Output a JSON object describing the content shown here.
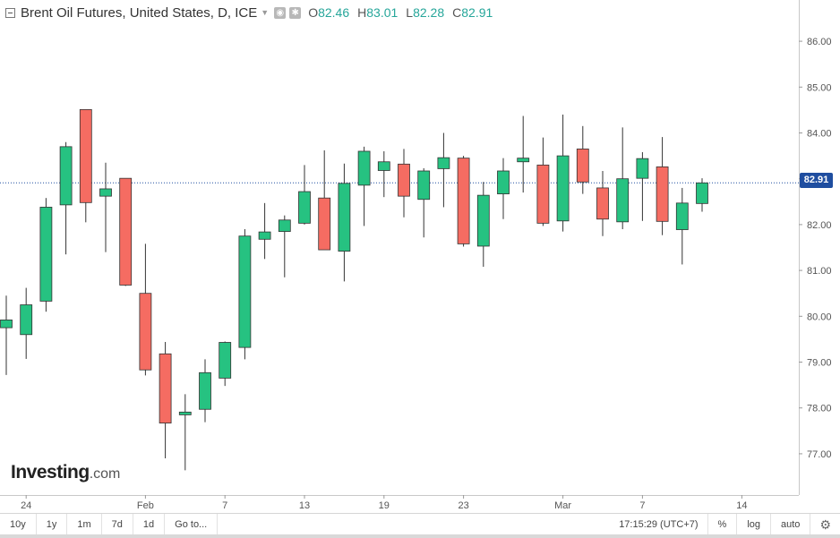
{
  "legend": {
    "title": "Brent Oil Futures, United States, D, ICE",
    "open_label": "O",
    "open": "82.46",
    "high_label": "H",
    "high": "83.01",
    "low_label": "L",
    "low": "82.28",
    "close_label": "C",
    "close": "82.91"
  },
  "logo": {
    "main": "Investing",
    "suffix": ".com"
  },
  "last_price": "82.91",
  "bottom_bar": {
    "timeframes": [
      "10y",
      "1y",
      "1m",
      "7d",
      "1d"
    ],
    "goto_label": "Go to...",
    "clock": "17:15:29 (UTC+7)",
    "percent_label": "%",
    "log_label": "log",
    "auto_label": "auto"
  },
  "colors": {
    "up": "#26c281",
    "down": "#f56c62",
    "price_line": "#1f4ea0"
  },
  "chart_data": {
    "type": "candlestick",
    "title": "Brent Oil Futures, United States, D, ICE",
    "y_ticks": [
      "77.00",
      "78.00",
      "79.00",
      "80.00",
      "81.00",
      "82.00",
      "83.00",
      "84.00",
      "85.00",
      "86.00"
    ],
    "ylim": [
      76.1,
      86.9
    ],
    "x_tick_labels": [
      {
        "label": "24",
        "index": 1
      },
      {
        "label": "Feb",
        "index": 7
      },
      {
        "label": "7",
        "index": 11
      },
      {
        "label": "13",
        "index": 15
      },
      {
        "label": "19",
        "index": 19
      },
      {
        "label": "23",
        "index": 23
      },
      {
        "label": "Mar",
        "index": 28
      },
      {
        "label": "7",
        "index": 32
      },
      {
        "label": "14",
        "index": 37
      }
    ],
    "grid": false,
    "candles": [
      {
        "o": 79.75,
        "h": 80.45,
        "l": 78.72,
        "c": 79.92
      },
      {
        "o": 79.6,
        "h": 80.62,
        "l": 79.07,
        "c": 80.25
      },
      {
        "o": 80.33,
        "h": 82.58,
        "l": 80.1,
        "c": 82.38
      },
      {
        "o": 82.43,
        "h": 83.8,
        "l": 81.35,
        "c": 83.7
      },
      {
        "o": 84.51,
        "h": 84.51,
        "l": 82.05,
        "c": 82.48
      },
      {
        "o": 82.62,
        "h": 83.35,
        "l": 81.4,
        "c": 82.78
      },
      {
        "o": 83.01,
        "h": 83.01,
        "l": 80.66,
        "c": 80.68
      },
      {
        "o": 80.5,
        "h": 81.58,
        "l": 78.71,
        "c": 78.83
      },
      {
        "o": 79.18,
        "h": 79.44,
        "l": 76.9,
        "c": 77.67
      },
      {
        "o": 77.85,
        "h": 78.3,
        "l": 76.64,
        "c": 77.91
      },
      {
        "o": 77.97,
        "h": 79.06,
        "l": 77.69,
        "c": 78.77
      },
      {
        "o": 78.65,
        "h": 79.45,
        "l": 78.48,
        "c": 79.43
      },
      {
        "o": 79.32,
        "h": 81.9,
        "l": 79.06,
        "c": 81.75
      },
      {
        "o": 81.68,
        "h": 82.47,
        "l": 81.25,
        "c": 81.84
      },
      {
        "o": 81.85,
        "h": 82.2,
        "l": 80.85,
        "c": 82.1
      },
      {
        "o": 82.03,
        "h": 83.3,
        "l": 82.0,
        "c": 82.72
      },
      {
        "o": 82.58,
        "h": 83.62,
        "l": 81.45,
        "c": 81.45
      },
      {
        "o": 81.42,
        "h": 83.33,
        "l": 80.76,
        "c": 82.9
      },
      {
        "o": 82.86,
        "h": 83.7,
        "l": 81.97,
        "c": 83.6
      },
      {
        "o": 83.18,
        "h": 83.6,
        "l": 82.6,
        "c": 83.37
      },
      {
        "o": 83.32,
        "h": 83.65,
        "l": 82.16,
        "c": 82.62
      },
      {
        "o": 82.55,
        "h": 83.23,
        "l": 81.72,
        "c": 83.17
      },
      {
        "o": 83.22,
        "h": 84.0,
        "l": 82.38,
        "c": 83.46
      },
      {
        "o": 83.45,
        "h": 83.5,
        "l": 81.52,
        "c": 81.58
      },
      {
        "o": 81.53,
        "h": 82.93,
        "l": 81.08,
        "c": 82.64
      },
      {
        "o": 82.67,
        "h": 83.45,
        "l": 82.12,
        "c": 83.17
      },
      {
        "o": 83.37,
        "h": 84.37,
        "l": 82.7,
        "c": 83.45
      },
      {
        "o": 83.3,
        "h": 83.9,
        "l": 81.97,
        "c": 82.03
      },
      {
        "o": 82.08,
        "h": 84.4,
        "l": 81.85,
        "c": 83.5
      },
      {
        "o": 83.65,
        "h": 84.15,
        "l": 82.67,
        "c": 82.93
      },
      {
        "o": 82.8,
        "h": 83.17,
        "l": 81.75,
        "c": 82.12
      },
      {
        "o": 82.06,
        "h": 84.12,
        "l": 81.9,
        "c": 83.0
      },
      {
        "o": 83.01,
        "h": 83.58,
        "l": 82.08,
        "c": 83.44
      },
      {
        "o": 83.26,
        "h": 83.91,
        "l": 81.77,
        "c": 82.07
      },
      {
        "o": 81.89,
        "h": 82.8,
        "l": 81.13,
        "c": 82.47
      },
      {
        "o": 82.46,
        "h": 83.01,
        "l": 82.28,
        "c": 82.91
      }
    ]
  }
}
